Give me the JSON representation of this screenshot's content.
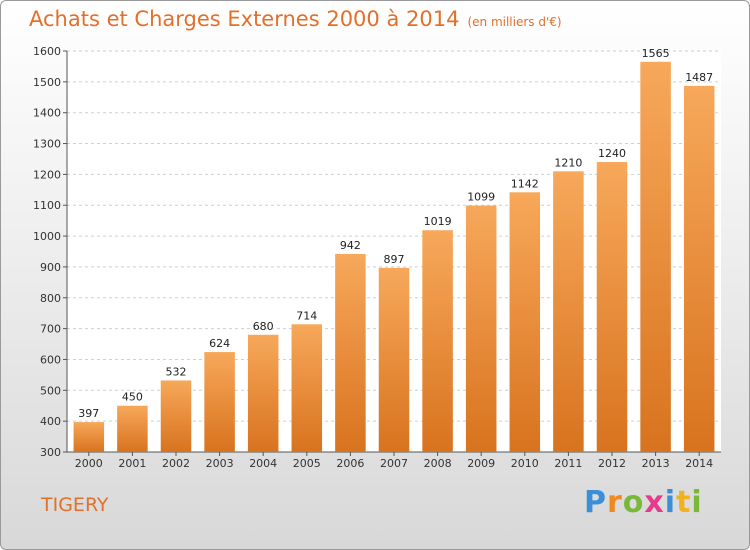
{
  "chart_data": {
    "type": "bar",
    "title": "Achats et Charges Externes 2000 à 2014",
    "subtitle": "(en milliers d'€)",
    "categories": [
      "2000",
      "2001",
      "2002",
      "2003",
      "2004",
      "2005",
      "2006",
      "2007",
      "2008",
      "2009",
      "2010",
      "2011",
      "2012",
      "2013",
      "2014"
    ],
    "values": [
      397,
      450,
      532,
      624,
      680,
      714,
      942,
      897,
      1019,
      1099,
      1142,
      1210,
      1240,
      1565,
      1487
    ],
    "ylim": [
      300,
      1600
    ],
    "yticks": [
      300,
      400,
      500,
      600,
      700,
      800,
      900,
      1000,
      1100,
      1200,
      1300,
      1400,
      1500,
      1600
    ],
    "grid": true,
    "bar_color": "#f0923a",
    "bar_color_light": "#f7a85a",
    "bar_color_dark": "#d8731f"
  },
  "footer": {
    "city": "TIGERY",
    "brand_letters": [
      {
        "ch": "P",
        "color": "#3a8fd8"
      },
      {
        "ch": "r",
        "color": "#f08a1e"
      },
      {
        "ch": "o",
        "color": "#7ab83a"
      },
      {
        "ch": "x",
        "color": "#e63a8a"
      },
      {
        "ch": "i",
        "color": "#3a8fd8"
      },
      {
        "ch": "t",
        "color": "#f0b21e"
      },
      {
        "ch": "i",
        "color": "#7ab83a"
      }
    ]
  }
}
